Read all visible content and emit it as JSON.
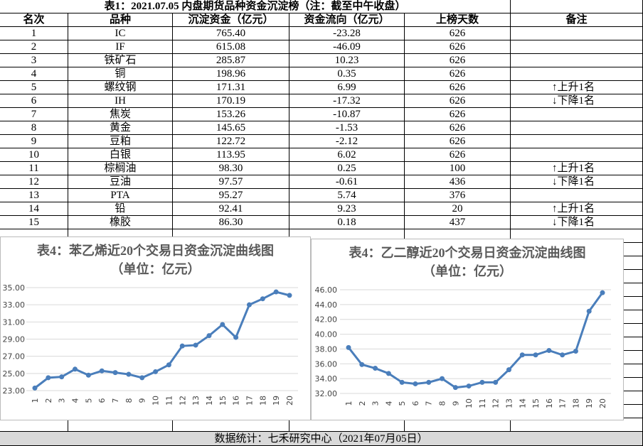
{
  "header": {
    "title": "表1：2021.07.05 内盘期货品种资金沉淀榜（注：截至中午收盘）"
  },
  "table": {
    "columns": [
      "名次",
      "品种",
      "沉淀资金（亿元）",
      "资金流向（亿元）",
      "上榜天数",
      "备注"
    ],
    "rows": [
      [
        "1",
        "IC",
        "765.40",
        "-23.28",
        "626"
      ],
      [
        "2",
        "IF",
        "615.08",
        "-46.09",
        "626"
      ],
      [
        "3",
        "铁矿石",
        "285.87",
        "10.23",
        "626"
      ],
      [
        "4",
        "铜",
        "198.96",
        "0.35",
        "626"
      ],
      [
        "5",
        "螺纹钢",
        "171.31",
        "6.99",
        "626",
        "↑上升1名"
      ],
      [
        "6",
        "IH",
        "170.19",
        "-17.32",
        "626",
        "↓下降1名"
      ],
      [
        "7",
        "焦炭",
        "153.26",
        "-10.87",
        "626"
      ],
      [
        "8",
        "黄金",
        "145.65",
        "-1.53",
        "626"
      ],
      [
        "9",
        "豆粕",
        "122.72",
        "-2.12",
        "626"
      ],
      [
        "10",
        "白银",
        "113.95",
        "6.02",
        "626"
      ],
      [
        "11",
        "棕榈油",
        "98.30",
        "0.25",
        "100",
        "↑上升1名"
      ],
      [
        "12",
        "豆油",
        "97.57",
        "-0.61",
        "436",
        "↓下降1名"
      ],
      [
        "13",
        "PTA",
        "95.27",
        "5.74",
        "376"
      ],
      [
        "14",
        "铅",
        "92.41",
        "9.23",
        "20",
        "↑上升1名"
      ],
      [
        "15",
        "橡胶",
        "86.30",
        "0.18",
        "437",
        "↓下降1名"
      ]
    ]
  },
  "chart_data": [
    {
      "type": "line",
      "title": "表4：苯乙烯近20个交易日资金沉淀曲线图（单位：亿元）",
      "color": "#4a7ebb",
      "categories": [
        "1",
        "2",
        "3",
        "4",
        "5",
        "6",
        "7",
        "8",
        "9",
        "10",
        "11",
        "12",
        "13",
        "14",
        "15",
        "16",
        "17",
        "18",
        "19",
        "20"
      ],
      "values": [
        23.3,
        24.5,
        24.6,
        25.5,
        24.8,
        25.3,
        25.1,
        24.9,
        24.5,
        25.2,
        26.0,
        28.2,
        28.3,
        29.4,
        30.7,
        29.2,
        33.0,
        33.7,
        34.5,
        34.1
      ],
      "ylim": [
        23,
        35
      ],
      "yticks": [
        {
          "value": 23,
          "label": "23.00"
        },
        {
          "value": 25,
          "label": "25.00"
        },
        {
          "value": 27,
          "label": "27.00"
        },
        {
          "value": 29,
          "label": "29.00"
        },
        {
          "value": 31,
          "label": "31.00"
        },
        {
          "value": 33,
          "label": "33.00"
        },
        {
          "value": 35,
          "label": "35.00"
        }
      ],
      "grid": true
    },
    {
      "type": "line",
      "title": "表4：乙二醇近20个交易日资金沉淀曲线图（单位：亿元）",
      "color": "#4a7ebb",
      "categories": [
        "1",
        "2",
        "3",
        "4",
        "5",
        "6",
        "7",
        "8",
        "9",
        "10",
        "11",
        "12",
        "13",
        "14",
        "15",
        "16",
        "17",
        "18",
        "19",
        "20"
      ],
      "values": [
        38.2,
        35.9,
        35.4,
        34.7,
        33.5,
        33.3,
        33.5,
        34.0,
        32.8,
        33.0,
        33.5,
        33.5,
        35.2,
        37.2,
        37.2,
        37.8,
        37.2,
        37.7,
        43.1,
        45.6
      ],
      "ylim": [
        32,
        46
      ],
      "yticks": [
        {
          "value": 32,
          "label": "32.00"
        },
        {
          "value": 34,
          "label": "34.00"
        },
        {
          "value": 36,
          "label": "36.00"
        },
        {
          "value": 38,
          "label": "38.00"
        },
        {
          "value": 40,
          "label": "40.00"
        },
        {
          "value": 42,
          "label": "42.00"
        },
        {
          "value": 44,
          "label": "44.00"
        },
        {
          "value": 46,
          "label": "46.00"
        }
      ],
      "grid": true
    }
  ],
  "footer": {
    "text": "数据统计：七禾研究中心（2021年07月05日）"
  }
}
